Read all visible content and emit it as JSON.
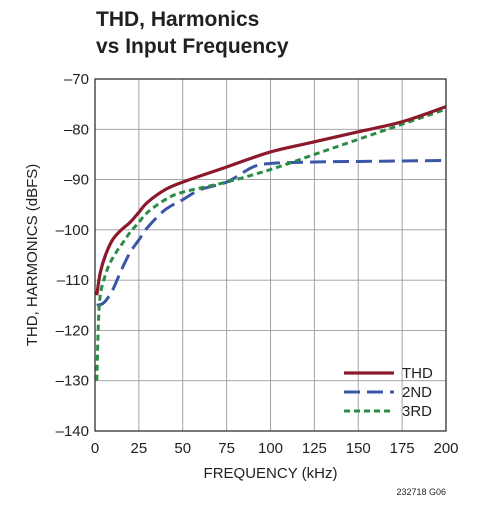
{
  "chart_data": {
    "type": "line",
    "title_lines": [
      "THD, Harmonics",
      "vs Input Frequency"
    ],
    "xlabel": "FREQUENCY (kHz)",
    "ylabel": "THD, HARMONICS (dBFS)",
    "xlim": [
      0,
      200
    ],
    "ylim": [
      -140,
      -70
    ],
    "x_ticks": [
      0,
      25,
      50,
      75,
      100,
      125,
      150,
      175,
      200
    ],
    "y_ticks": [
      -70,
      -80,
      -90,
      -100,
      -110,
      -120,
      -130,
      -140
    ],
    "x_tick_labels": [
      "0",
      "25",
      "50",
      "75",
      "100",
      "125",
      "150",
      "175",
      "200"
    ],
    "y_tick_labels": [
      "–70",
      "–80",
      "–90",
      "–100",
      "–110",
      "–120",
      "–130",
      "–140"
    ],
    "grid": true,
    "legend_position": "bottom-right",
    "figure_code": "232718 G06",
    "series": [
      {
        "name": "THD",
        "color": "#8b1a2c",
        "style": "solid",
        "x": [
          1,
          3,
          6,
          10,
          15,
          20,
          25,
          30,
          40,
          50,
          75,
          100,
          125,
          150,
          175,
          200
        ],
        "y": [
          -113,
          -108.5,
          -105,
          -102,
          -100,
          -98.5,
          -96.5,
          -94.5,
          -92,
          -90.5,
          -87.5,
          -84.5,
          -82.5,
          -80.5,
          -78.5,
          -75.5
        ]
      },
      {
        "name": "2ND",
        "color": "#3b56a6",
        "style": "long-dash",
        "x": [
          1,
          5,
          10,
          15,
          20,
          25,
          30,
          40,
          50,
          60,
          75,
          90,
          100,
          125,
          150,
          175,
          200
        ],
        "y": [
          -115,
          -114.5,
          -112,
          -108,
          -104.5,
          -102,
          -99.5,
          -96,
          -94,
          -92,
          -90.5,
          -87.5,
          -86.8,
          -86.5,
          -86.4,
          -86.3,
          -86.2
        ]
      },
      {
        "name": "3RD",
        "color": "#2a8c45",
        "style": "short-dash",
        "x": [
          1,
          2,
          3,
          5,
          8,
          12,
          16,
          20,
          25,
          30,
          40,
          50,
          75,
          100,
          125,
          150,
          175,
          200
        ],
        "y": [
          -130,
          -118,
          -113,
          -110,
          -107,
          -104.5,
          -102.5,
          -100.5,
          -98.5,
          -96.5,
          -94,
          -92.5,
          -90.5,
          -88,
          -85,
          -82,
          -79,
          -76
        ]
      }
    ]
  }
}
